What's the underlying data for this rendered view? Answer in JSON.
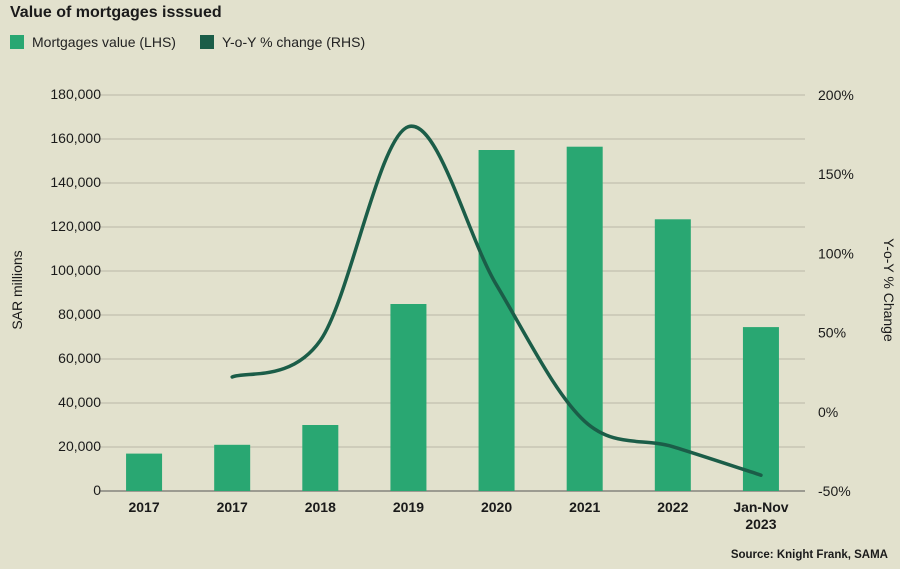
{
  "chart_data": {
    "type": "bar",
    "title": "Value of mortgages isssued",
    "categories": [
      "2017",
      "2017",
      "2018",
      "2019",
      "2020",
      "2021",
      "2022",
      "Jan-Nov|2023"
    ],
    "series": [
      {
        "name": "Mortgages value (LHS)",
        "type": "bar",
        "axis": "left",
        "color": "#29a772",
        "values": [
          17000,
          21000,
          30000,
          85000,
          155000,
          156500,
          123500,
          74500
        ]
      },
      {
        "name": "Y-o-Y % change (RHS)",
        "type": "line",
        "axis": "right",
        "color": "#1b5d48",
        "values": [
          null,
          22,
          45,
          180,
          80,
          -6,
          -22,
          -40
        ]
      }
    ],
    "ylabel": "SAR millions",
    "y2label": "Y-o-Y % Change",
    "ylim": [
      0,
      180000
    ],
    "y2lim": [
      -50,
      200
    ],
    "yticks": [
      0,
      20000,
      40000,
      60000,
      80000,
      100000,
      120000,
      140000,
      160000,
      180000
    ],
    "yticklabels": [
      "0",
      "20,000",
      "40,000",
      "60,000",
      "80,000",
      "100,000",
      "120,000",
      "140,000",
      "160,000",
      "180,000"
    ],
    "y2ticks": [
      -50,
      0,
      50,
      100,
      150,
      200
    ],
    "y2ticklabels": [
      "-50%",
      "0%",
      "50%",
      "100%",
      "150%",
      "200%"
    ],
    "grid": true,
    "legend": "top-left",
    "source": "Source: Knight Frank, SAMA"
  }
}
